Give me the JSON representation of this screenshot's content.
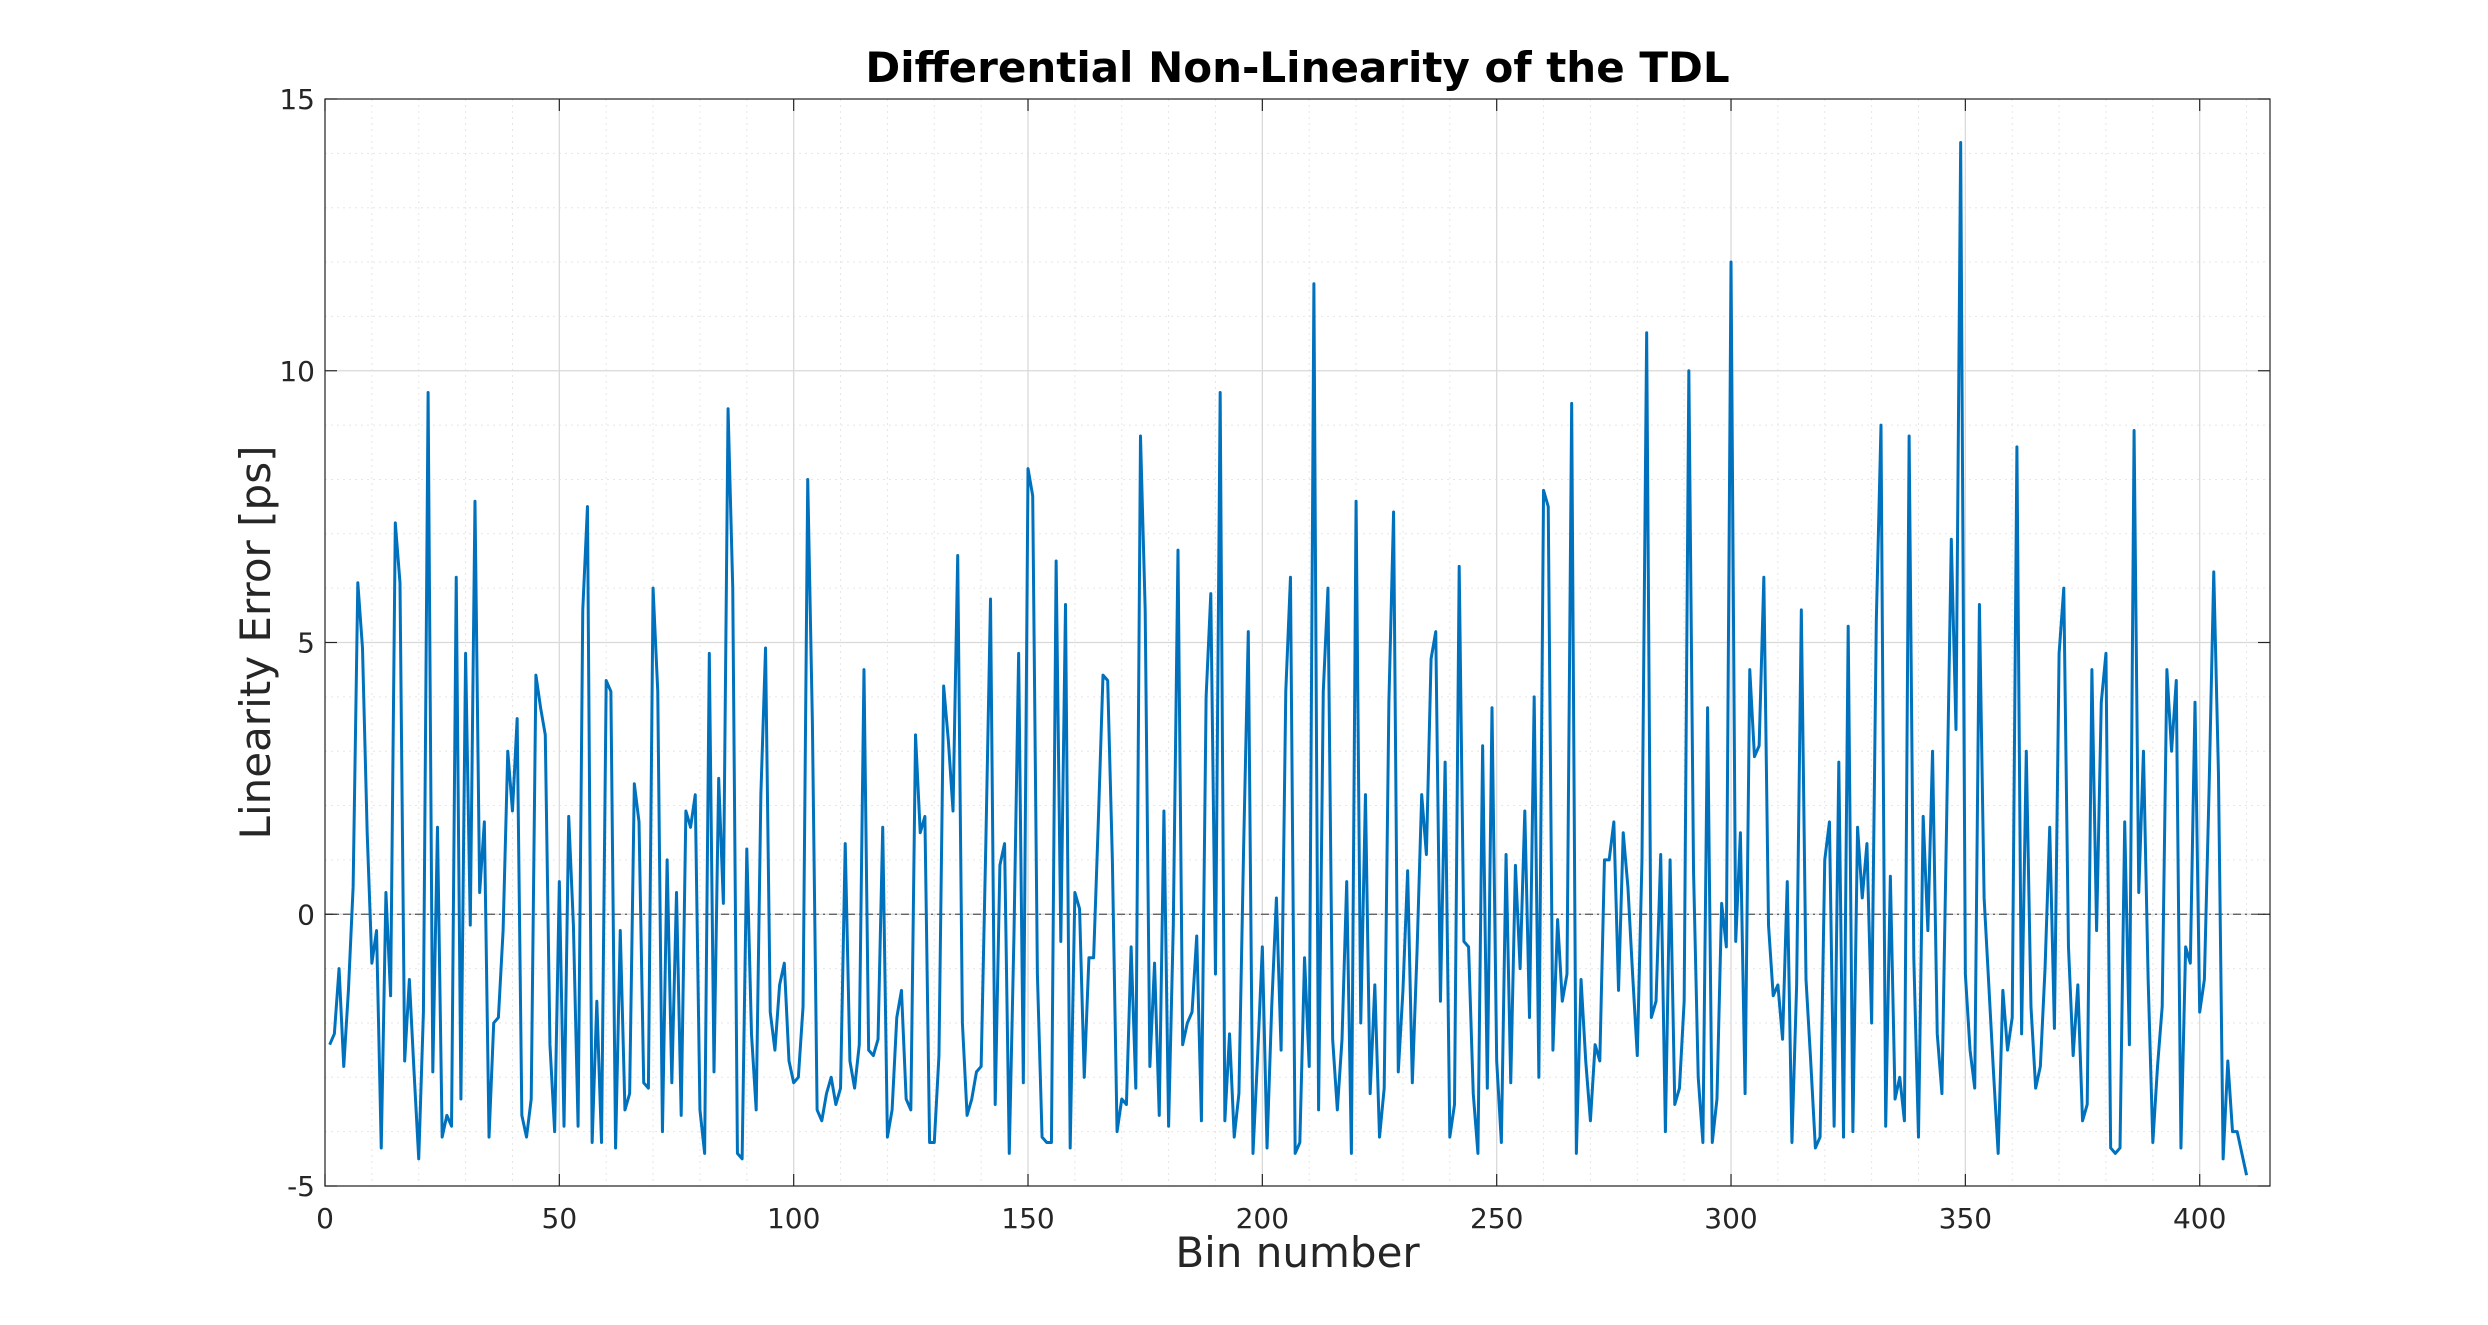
{
  "chart_data": {
    "type": "line",
    "title": "Differential Non-Linearity of the TDL",
    "xlabel": "Bin number",
    "ylabel": "Linearity Error [ps]",
    "xlim": [
      0,
      415
    ],
    "ylim": [
      -5,
      15
    ],
    "x_ticks": [
      "0",
      "50",
      "100",
      "150",
      "200",
      "250",
      "300",
      "350",
      "400"
    ],
    "y_ticks": [
      "-5",
      "0",
      "5",
      "10",
      "15"
    ],
    "grid": true,
    "minor_grid": true,
    "legend": "none",
    "zero_line": true,
    "series": [
      {
        "color": "#0072BD",
        "x_start": 1,
        "x_step": 1,
        "values": [
          -2.4,
          -2.2,
          -1.0,
          -2.8,
          -1.4,
          0.5,
          6.1,
          4.9,
          1.5,
          -0.9,
          -0.3,
          -4.3,
          0.4,
          -1.5,
          7.2,
          6.1,
          -2.7,
          -1.2,
          -2.9,
          -4.5,
          -1.8,
          9.6,
          -2.9,
          1.6,
          -4.1,
          -3.7,
          -3.9,
          6.2,
          -3.4,
          4.8,
          -0.2,
          7.6,
          0.4,
          1.7,
          -4.1,
          -2.0,
          -1.9,
          -0.3,
          3.0,
          1.9,
          3.6,
          -3.7,
          -4.1,
          -3.4,
          4.4,
          3.8,
          3.3,
          -2.4,
          -4.0,
          0.6,
          -3.9,
          1.8,
          -0.2,
          -3.9,
          5.6,
          7.5,
          -4.2,
          -1.6,
          -4.2,
          4.3,
          4.1,
          -4.3,
          -0.3,
          -3.6,
          -3.3,
          2.4,
          1.7,
          -3.1,
          -3.2,
          6.0,
          4.1,
          -4.0,
          1.0,
          -3.1,
          0.4,
          -3.7,
          1.9,
          1.6,
          2.2,
          -3.6,
          -4.4,
          4.8,
          -2.9,
          2.5,
          0.2,
          9.3,
          6.0,
          -4.4,
          -4.5,
          1.2,
          -2.2,
          -3.6,
          2.2,
          4.9,
          -1.8,
          -2.5,
          -1.3,
          -0.9,
          -2.7,
          -3.1,
          -3.0,
          -1.7,
          8.0,
          3.5,
          -3.6,
          -3.8,
          -3.3,
          -3.0,
          -3.5,
          -3.2,
          1.3,
          -2.7,
          -3.2,
          -2.4,
          4.5,
          -2.5,
          -2.6,
          -2.3,
          1.6,
          -4.1,
          -3.6,
          -1.9,
          -1.4,
          -3.4,
          -3.6,
          3.3,
          1.5,
          1.8,
          -4.2,
          -4.2,
          -2.6,
          4.2,
          3.2,
          1.9,
          6.6,
          -2.0,
          -3.7,
          -3.4,
          -2.9,
          -2.8,
          1.3,
          5.8,
          -3.5,
          0.9,
          1.3,
          -4.4,
          -0.4,
          4.8,
          -3.1,
          8.2,
          7.7,
          -1.1,
          -4.1,
          -4.2,
          -4.2,
          6.5,
          -0.5,
          5.7,
          -4.3,
          0.4,
          0.1,
          -3.0,
          -0.8,
          -0.8,
          1.7,
          4.4,
          4.3,
          1.0,
          -4.0,
          -3.4,
          -3.5,
          -0.6,
          -3.2,
          8.8,
          5.6,
          -2.8,
          -0.9,
          -3.7,
          1.9,
          -3.9,
          -0.2,
          6.7,
          -2.4,
          -2.0,
          -1.8,
          -0.4,
          -3.8,
          4.0,
          5.9,
          -1.1,
          9.6,
          -3.8,
          -2.2,
          -4.1,
          -3.3,
          1.2,
          5.2,
          -4.4,
          -2.6,
          -0.6,
          -4.3,
          -1.7,
          0.3,
          -2.5,
          4.1,
          6.2,
          -4.4,
          -4.2,
          -0.8,
          -2.8,
          11.6,
          -3.6,
          4.1,
          6.0,
          -2.3,
          -3.6,
          -2.3,
          0.6,
          -4.4,
          7.6,
          -2.0,
          2.2,
          -3.3,
          -1.3,
          -4.1,
          -3.2,
          3.9,
          7.4,
          -2.9,
          -1.4,
          0.8,
          -3.1,
          -0.7,
          2.2,
          1.1,
          4.7,
          5.2,
          -1.6,
          2.8,
          -4.1,
          -3.5,
          6.4,
          -0.5,
          -0.6,
          -3.3,
          -4.4,
          3.1,
          -3.2,
          3.8,
          -2.7,
          -4.2,
          1.1,
          -3.1,
          0.9,
          -1.0,
          1.9,
          -1.9,
          4.0,
          -3.0,
          7.8,
          7.5,
          -2.5,
          -0.1,
          -1.6,
          -1.1,
          9.4,
          -4.4,
          -1.2,
          -2.7,
          -3.8,
          -2.4,
          -2.7,
          1.0,
          1.0,
          1.7,
          -1.4,
          1.5,
          0.5,
          -1.1,
          -2.6,
          1.0,
          10.7,
          -1.9,
          -1.6,
          1.1,
          -4.0,
          1.0,
          -3.5,
          -3.2,
          -1.6,
          10.0,
          0.8,
          -3.0,
          -4.2,
          3.8,
          -4.2,
          -3.4,
          0.2,
          -0.6,
          12.0,
          -0.5,
          1.5,
          -3.3,
          4.5,
          2.9,
          3.1,
          6.2,
          -0.2,
          -1.5,
          -1.3,
          -2.3,
          0.6,
          -4.2,
          -1.3,
          5.6,
          -1.2,
          -2.7,
          -4.3,
          -4.1,
          1.0,
          1.7,
          -3.9,
          2.8,
          -4.1,
          5.3,
          -4.0,
          1.6,
          0.3,
          1.3,
          -2.0,
          5.4,
          9.0,
          -3.9,
          0.7,
          -3.4,
          -3.0,
          -3.8,
          8.8,
          -0.8,
          -4.1,
          1.8,
          -0.3,
          3.0,
          -2.2,
          -3.3,
          1.7,
          6.9,
          3.4,
          14.2,
          -1.1,
          -2.5,
          -3.2,
          5.7,
          0.3,
          -1.3,
          -2.9,
          -4.4,
          -1.4,
          -2.5,
          -1.9,
          8.6,
          -2.2,
          3.0,
          -1.7,
          -3.2,
          -2.8,
          -1.0,
          1.6,
          -2.1,
          4.8,
          6.0,
          -0.6,
          -2.6,
          -1.3,
          -3.8,
          -3.5,
          4.5,
          -0.3,
          3.9,
          4.8,
          -4.3,
          -4.4,
          -4.3,
          1.7,
          -2.4,
          8.9,
          0.4,
          3.0,
          -1.2,
          -4.2,
          -2.8,
          -1.7,
          4.5,
          3.0,
          4.3,
          -4.3,
          -0.6,
          -0.9,
          3.9,
          -1.8,
          -1.2,
          2.3,
          6.3,
          2.6,
          -4.5,
          -2.7,
          -4.0,
          -4.0,
          -4.4,
          -4.8
        ]
      }
    ]
  }
}
